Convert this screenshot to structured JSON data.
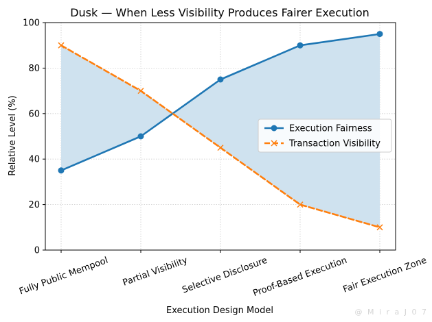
{
  "chart_data": {
    "type": "line",
    "title": "Dusk — When Less Visibility Produces Fairer Execution",
    "xlabel": "Execution Design Model",
    "ylabel": "Relative Level (%)",
    "categories": [
      "Fully Public Mempool",
      "Partial Visibility",
      "Selective Disclosure",
      "Proof-Based Execution",
      "Fair Execution Zone"
    ],
    "ylim": [
      0,
      100
    ],
    "yticks": [
      0,
      20,
      40,
      60,
      80,
      100
    ],
    "grid": true,
    "legend_position": "center-right",
    "fill_between": true,
    "fill_color": "#cfe2ef",
    "series": [
      {
        "name": "Execution Fairness",
        "values": [
          35,
          50,
          75,
          90,
          95
        ],
        "color": "#1f77b4",
        "style": "solid",
        "marker": "circle"
      },
      {
        "name": "Transaction Visibility",
        "values": [
          90,
          70,
          45,
          20,
          10
        ],
        "color": "#ff7f0e",
        "style": "dashed",
        "marker": "x"
      }
    ]
  },
  "watermark": "@ M i r a J 0 7"
}
